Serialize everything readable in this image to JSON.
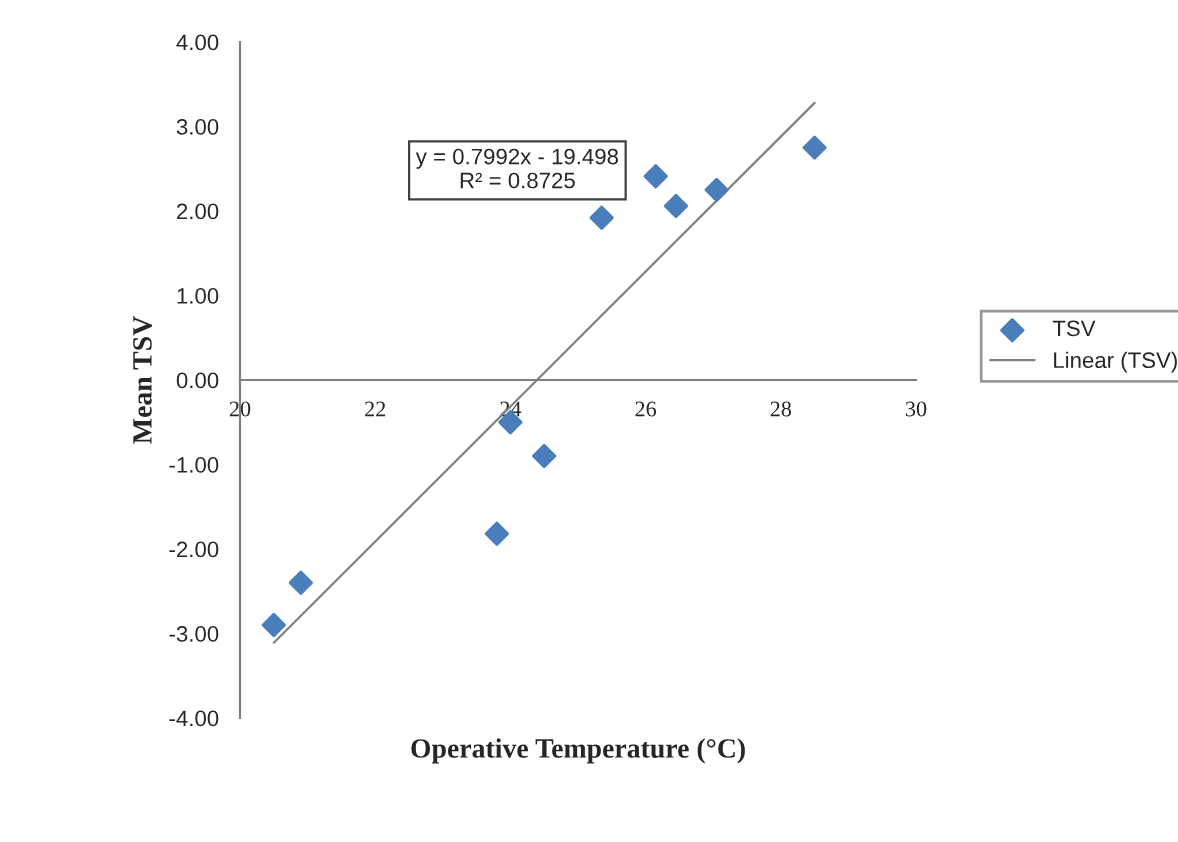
{
  "chart_data": {
    "type": "scatter",
    "xlabel": "Operative Temperature (°C)",
    "ylabel": "Mean TSV",
    "series": [
      {
        "name": "TSV",
        "color": "#4a7ebb",
        "marker": "diamond",
        "x": [
          20.5,
          20.9,
          23.8,
          24.0,
          24.5,
          25.35,
          26.15,
          26.45,
          27.05,
          28.5
        ],
        "values": [
          -2.9,
          -2.4,
          -1.82,
          -0.5,
          -0.9,
          1.92,
          2.41,
          2.06,
          2.25,
          2.75
        ]
      },
      {
        "name": "Linear (TSV)",
        "type": "line",
        "color": "#808080",
        "marker": "none",
        "x": [
          20.5,
          28.5
        ],
        "values": [
          -3.11,
          3.28
        ]
      }
    ],
    "annotations": [
      "y = 0.7992x - 19.498\nR² = 0.8725"
    ],
    "xlim": [
      20,
      30
    ],
    "xticks": [
      20,
      22,
      24,
      26,
      28,
      30
    ],
    "ylim": [
      -4,
      4
    ],
    "yticks": [
      {
        "value": -4,
        "label": "-4.00"
      },
      {
        "value": -3,
        "label": "-3.00"
      },
      {
        "value": -2,
        "label": "-2.00"
      },
      {
        "value": -1,
        "label": "-1.00"
      },
      {
        "value": 0,
        "label": "0.00"
      },
      {
        "value": 1,
        "label": "1.00"
      },
      {
        "value": 2,
        "label": "2.00"
      },
      {
        "value": 3,
        "label": "3.00"
      },
      {
        "value": 4,
        "label": "4.00"
      }
    ],
    "grid": false,
    "legend": "right"
  }
}
